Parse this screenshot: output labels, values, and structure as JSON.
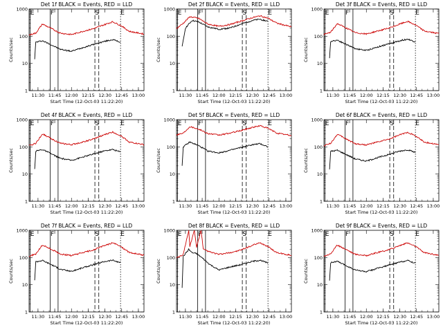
{
  "chart_data": [
    {
      "type": "line",
      "title": "Det 1f BLACK = Events, RED = LLD",
      "xlabel": "Start Time (12-Oct-03 11:22:20)",
      "ylabel": "Counts/sec",
      "x_ticks": [
        "11:30",
        "11:45",
        "12:00",
        "12:15",
        "12:30",
        "12:45",
        "13:00"
      ],
      "y_ticks": [
        "1",
        "10",
        "100",
        "1000"
      ],
      "x_range": [
        "11:22",
        "13:05"
      ],
      "ylim": [
        1,
        1000
      ],
      "y_scale": "log",
      "markers": [
        "E",
        "F",
        "S",
        "E"
      ],
      "marker_times": [
        "11:23",
        "11:41",
        "12:21",
        "12:44"
      ],
      "series": [
        {
          "name": "BLACK = Events",
          "color": "#000000",
          "times": [
            "11:27",
            "11:28",
            "11:34",
            "11:42",
            "11:50",
            "12:00",
            "12:10",
            "12:20",
            "12:30",
            "12:37",
            "12:44"
          ],
          "values": [
            15,
            60,
            68,
            48,
            33,
            28,
            38,
            50,
            65,
            75,
            60
          ]
        },
        {
          "name": "RED = LLD",
          "color": "#cc0000",
          "times": [
            "11:22",
            "11:28",
            "11:34",
            "11:42",
            "11:50",
            "12:00",
            "12:10",
            "12:20",
            "12:30",
            "12:37",
            "12:44",
            "12:52",
            "13:05"
          ],
          "values": [
            110,
            130,
            280,
            190,
            130,
            115,
            150,
            190,
            270,
            340,
            250,
            150,
            120
          ]
        }
      ]
    },
    {
      "type": "line",
      "title": "Det 2f BLACK = Events, RED = LLD",
      "xlabel": "Start Time (12-Oct-03 11:22:20)",
      "ylabel": "Counts/sec",
      "x_ticks": [
        "11:30",
        "11:45",
        "12:00",
        "12:15",
        "12:30",
        "12:45",
        "13:00"
      ],
      "y_ticks": [
        "1",
        "10",
        "100",
        "1000"
      ],
      "x_range": [
        "11:22",
        "13:05"
      ],
      "ylim": [
        1,
        1000
      ],
      "y_scale": "log",
      "markers": [
        "E",
        "F",
        "S",
        "E"
      ],
      "marker_times": [
        "11:23",
        "11:41",
        "12:21",
        "12:44"
      ],
      "series": [
        {
          "name": "BLACK = Events",
          "color": "#000000",
          "times": [
            "11:27",
            "11:30",
            "11:36",
            "11:42",
            "11:50",
            "12:00",
            "12:10",
            "12:20",
            "12:30",
            "12:37",
            "12:44"
          ],
          "values": [
            40,
            200,
            380,
            330,
            220,
            180,
            200,
            280,
            380,
            420,
            350
          ]
        },
        {
          "name": "RED = LLD",
          "color": "#cc0000",
          "times": [
            "11:22",
            "11:28",
            "11:34",
            "11:42",
            "11:50",
            "12:00",
            "12:10",
            "12:20",
            "12:30",
            "12:37",
            "12:44",
            "12:52",
            "13:05"
          ],
          "values": [
            190,
            300,
            520,
            450,
            280,
            230,
            270,
            360,
            480,
            560,
            460,
            300,
            220
          ]
        }
      ]
    },
    {
      "type": "line",
      "title": "Det 3f BLACK = Events, RED = LLD",
      "xlabel": "Start Time (12-Oct-03 11:22:20)",
      "ylabel": "Counts/sec",
      "x_ticks": [
        "11:30",
        "11:45",
        "12:00",
        "12:15",
        "12:30",
        "12:45",
        "13:00"
      ],
      "y_ticks": [
        "1",
        "10",
        "100",
        "1000"
      ],
      "x_range": [
        "11:22",
        "13:05"
      ],
      "ylim": [
        1,
        1000
      ],
      "y_scale": "log",
      "markers": [
        "E",
        "F",
        "S",
        "E"
      ],
      "marker_times": [
        "11:23",
        "11:41",
        "12:21",
        "12:44"
      ],
      "series": [
        {
          "name": "BLACK = Events",
          "color": "#000000",
          "times": [
            "11:27",
            "11:28",
            "11:34",
            "11:42",
            "11:50",
            "12:00",
            "12:10",
            "12:20",
            "12:30",
            "12:37",
            "12:44"
          ],
          "values": [
            15,
            65,
            72,
            50,
            35,
            30,
            40,
            52,
            68,
            78,
            62
          ]
        },
        {
          "name": "RED = LLD",
          "color": "#cc0000",
          "times": [
            "11:22",
            "11:28",
            "11:34",
            "11:42",
            "11:50",
            "12:00",
            "12:10",
            "12:20",
            "12:30",
            "12:37",
            "12:44",
            "12:52",
            "13:05"
          ],
          "values": [
            115,
            140,
            290,
            200,
            135,
            120,
            155,
            195,
            280,
            350,
            260,
            155,
            125
          ]
        }
      ]
    },
    {
      "type": "line",
      "title": "Det 4f BLACK = Events, RED = LLD",
      "xlabel": "Start Time (12-Oct-03 11:22:20)",
      "ylabel": "Counts/sec",
      "x_ticks": [
        "11:30",
        "11:45",
        "12:00",
        "12:15",
        "12:30",
        "12:45",
        "13:00"
      ],
      "y_ticks": [
        "1",
        "10",
        "100",
        "1000"
      ],
      "x_range": [
        "11:22",
        "13:05"
      ],
      "ylim": [
        1,
        1000
      ],
      "y_scale": "log",
      "markers": [
        "E",
        "F",
        "S",
        "E"
      ],
      "marker_times": [
        "11:23",
        "11:41",
        "12:21",
        "12:44"
      ],
      "series": [
        {
          "name": "BLACK = Events",
          "color": "#000000",
          "times": [
            "11:27",
            "11:28",
            "11:34",
            "11:42",
            "11:50",
            "12:00",
            "12:10",
            "12:20",
            "12:30",
            "12:37",
            "12:44"
          ],
          "values": [
            15,
            70,
            80,
            55,
            38,
            32,
            42,
            55,
            72,
            80,
            65
          ]
        },
        {
          "name": "RED = LLD",
          "color": "#cc0000",
          "times": [
            "11:22",
            "11:28",
            "11:34",
            "11:42",
            "11:50",
            "12:00",
            "12:10",
            "12:20",
            "12:30",
            "12:37",
            "12:44",
            "12:52",
            "13:05"
          ],
          "values": [
            110,
            135,
            300,
            200,
            135,
            120,
            150,
            195,
            285,
            350,
            260,
            150,
            120
          ]
        }
      ]
    },
    {
      "type": "line",
      "title": "Det 5f BLACK = Events, RED = LLD",
      "xlabel": "Start Time (12-Oct-03 11:22:20)",
      "ylabel": "Counts/sec",
      "x_ticks": [
        "11:30",
        "11:45",
        "12:00",
        "12:15",
        "12:30",
        "12:45",
        "13:00"
      ],
      "y_ticks": [
        "1",
        "10",
        "100",
        "1000"
      ],
      "x_range": [
        "11:22",
        "13:05"
      ],
      "ylim": [
        1,
        1000
      ],
      "y_scale": "log",
      "markers": [
        "E",
        "F",
        "S",
        "E"
      ],
      "marker_times": [
        "11:23",
        "11:41",
        "12:21",
        "12:44"
      ],
      "series": [
        {
          "name": "BLACK = Events",
          "color": "#000000",
          "times": [
            "11:27",
            "11:28",
            "11:34",
            "11:42",
            "11:50",
            "12:00",
            "12:10",
            "12:20",
            "12:30",
            "12:37",
            "12:44"
          ],
          "values": [
            20,
            100,
            150,
            110,
            70,
            60,
            75,
            95,
            120,
            130,
            100
          ]
        },
        {
          "name": "RED = LLD",
          "color": "#cc0000",
          "times": [
            "11:22",
            "11:28",
            "11:34",
            "11:42",
            "11:50",
            "12:00",
            "12:10",
            "12:20",
            "12:30",
            "12:37",
            "12:44",
            "12:52",
            "13:05"
          ],
          "values": [
            280,
            320,
            560,
            450,
            310,
            270,
            320,
            400,
            520,
            600,
            480,
            320,
            260
          ]
        }
      ]
    },
    {
      "type": "line",
      "title": "Det 6f BLACK = Events, RED = LLD",
      "xlabel": "Start Time (12-Oct-03 11:22:20)",
      "ylabel": "Counts/sec",
      "x_ticks": [
        "11:30",
        "11:45",
        "12:00",
        "12:15",
        "12:30",
        "12:45",
        "13:00"
      ],
      "y_ticks": [
        "1",
        "10",
        "100",
        "1000"
      ],
      "x_range": [
        "11:22",
        "13:05"
      ],
      "ylim": [
        1,
        1000
      ],
      "y_scale": "log",
      "markers": [
        "E",
        "F",
        "S",
        "E"
      ],
      "marker_times": [
        "11:23",
        "11:41",
        "12:21",
        "12:44"
      ],
      "series": [
        {
          "name": "BLACK = Events",
          "color": "#000000",
          "times": [
            "11:27",
            "11:28",
            "11:34",
            "11:42",
            "11:50",
            "12:00",
            "12:10",
            "12:20",
            "12:30",
            "12:37",
            "12:44"
          ],
          "values": [
            15,
            68,
            75,
            52,
            36,
            30,
            40,
            52,
            70,
            78,
            62
          ]
        },
        {
          "name": "RED = LLD",
          "color": "#cc0000",
          "times": [
            "11:22",
            "11:28",
            "11:34",
            "11:42",
            "11:50",
            "12:00",
            "12:10",
            "12:20",
            "12:30",
            "12:37",
            "12:44",
            "12:52",
            "13:05"
          ],
          "values": [
            110,
            135,
            290,
            195,
            130,
            118,
            150,
            190,
            275,
            345,
            255,
            150,
            120
          ]
        }
      ]
    },
    {
      "type": "line",
      "title": "Det 7f BLACK = Events, RED = LLD",
      "xlabel": "Start Time (12-Oct-03 11:22:20)",
      "ylabel": "Counts/sec",
      "x_ticks": [
        "11:30",
        "11:45",
        "12:00",
        "12:15",
        "12:30",
        "12:45",
        "13:00"
      ],
      "y_ticks": [
        "1",
        "10",
        "100",
        "1000"
      ],
      "x_range": [
        "11:22",
        "13:05"
      ],
      "ylim": [
        1,
        1000
      ],
      "y_scale": "log",
      "markers": [
        "E",
        "F",
        "S",
        "E"
      ],
      "marker_times": [
        "11:23",
        "11:41",
        "12:21",
        "12:44"
      ],
      "series": [
        {
          "name": "BLACK = Events",
          "color": "#000000",
          "times": [
            "11:27",
            "11:28",
            "11:34",
            "11:42",
            "11:50",
            "12:00",
            "12:10",
            "12:20",
            "12:30",
            "12:37",
            "12:44"
          ],
          "values": [
            15,
            70,
            78,
            55,
            37,
            31,
            42,
            55,
            72,
            80,
            64
          ]
        },
        {
          "name": "RED = LLD",
          "color": "#cc0000",
          "times": [
            "11:22",
            "11:28",
            "11:34",
            "11:42",
            "11:50",
            "12:00",
            "12:10",
            "12:20",
            "12:30",
            "12:37",
            "12:44",
            "12:52",
            "13:05"
          ],
          "values": [
            110,
            135,
            290,
            200,
            135,
            118,
            150,
            192,
            280,
            348,
            258,
            152,
            122
          ]
        }
      ]
    },
    {
      "type": "line",
      "title": "Det 8f BLACK = Events, RED = LLD",
      "xlabel": "Start Time (12-Oct-03 11:22:20)",
      "ylabel": "Counts/sec",
      "x_ticks": [
        "11:30",
        "11:45",
        "12:00",
        "12:15",
        "12:30",
        "12:45",
        "13:00"
      ],
      "y_ticks": [
        "1",
        "10",
        "100",
        "1000"
      ],
      "x_range": [
        "11:22",
        "13:05"
      ],
      "ylim": [
        1,
        1000
      ],
      "y_scale": "log",
      "markers": [
        "E",
        "F",
        "S",
        "E"
      ],
      "marker_times": [
        "11:23",
        "11:41",
        "12:21",
        "12:44"
      ],
      "series": [
        {
          "name": "BLACK = Events",
          "color": "#000000",
          "times": [
            "11:27",
            "11:28",
            "11:33",
            "11:36",
            "11:40",
            "11:46",
            "11:52",
            "12:00",
            "12:10",
            "12:20",
            "12:30",
            "12:37",
            "12:44"
          ],
          "values": [
            8,
            110,
            200,
            150,
            140,
            90,
            55,
            35,
            45,
            55,
            72,
            80,
            62
          ]
        },
        {
          "name": "RED = LLD",
          "color": "#cc0000",
          "times": [
            "11:22",
            "11:28",
            "11:33",
            "11:34",
            "11:38",
            "11:40",
            "11:44",
            "11:46",
            "11:52",
            "12:00",
            "12:10",
            "12:20",
            "12:30",
            "12:37",
            "12:44",
            "12:52",
            "13:05"
          ],
          "values": [
            100,
            130,
            1000,
            260,
            1000,
            240,
            1000,
            200,
            160,
            130,
            150,
            190,
            280,
            345,
            255,
            150,
            120
          ]
        }
      ]
    },
    {
      "type": "line",
      "title": "Det 9f BLACK = Events, RED = LLD",
      "xlabel": "Start Time (12-Oct-03 11:22:20)",
      "ylabel": "Counts/sec",
      "x_ticks": [
        "11:30",
        "11:45",
        "12:00",
        "12:15",
        "12:30",
        "12:45",
        "13:00"
      ],
      "y_ticks": [
        "1",
        "10",
        "100",
        "1000"
      ],
      "x_range": [
        "11:22",
        "13:05"
      ],
      "ylim": [
        1,
        1000
      ],
      "y_scale": "log",
      "markers": [
        "E",
        "F",
        "S",
        "E"
      ],
      "marker_times": [
        "11:23",
        "11:41",
        "12:21",
        "12:44"
      ],
      "series": [
        {
          "name": "BLACK = Events",
          "color": "#000000",
          "times": [
            "11:27",
            "11:28",
            "11:34",
            "11:42",
            "11:50",
            "12:00",
            "12:10",
            "12:20",
            "12:30",
            "12:37",
            "12:44"
          ],
          "values": [
            15,
            65,
            72,
            50,
            35,
            30,
            40,
            52,
            68,
            78,
            62
          ]
        },
        {
          "name": "RED = LLD",
          "color": "#cc0000",
          "times": [
            "11:22",
            "11:28",
            "11:34",
            "11:42",
            "11:50",
            "12:00",
            "12:10",
            "12:20",
            "12:30",
            "12:37",
            "12:44",
            "12:52",
            "13:05"
          ],
          "values": [
            112,
            138,
            285,
            198,
            132,
            118,
            152,
            192,
            278,
            345,
            258,
            152,
            122
          ]
        }
      ]
    }
  ]
}
